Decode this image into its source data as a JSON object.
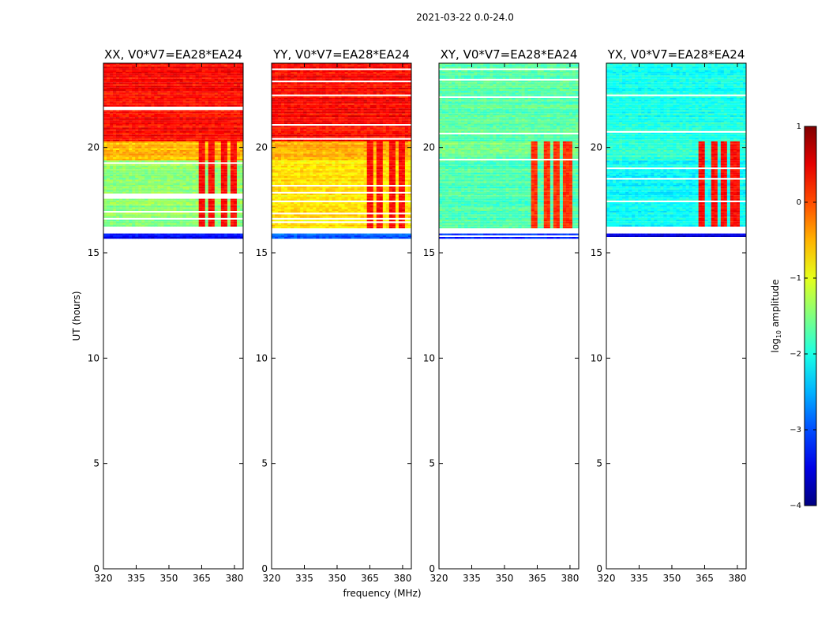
{
  "chart_data": {
    "type": "heatmap",
    "suptitle": "2021-03-22 0.0-24.0",
    "xlabel": "frequency (MHz)",
    "ylabel": "UT (hours)",
    "xlim": [
      320,
      384
    ],
    "ylim": [
      0,
      24
    ],
    "xticks": [
      320,
      335,
      350,
      365,
      380
    ],
    "yticks": [
      0,
      5,
      10,
      15,
      20
    ],
    "data_time_range_hours": [
      15.7,
      24.0
    ],
    "colorbar": {
      "label": "log10 amplitude",
      "range": [
        -4,
        1
      ],
      "ticks": [
        1,
        0,
        -1,
        -2,
        -3,
        -4
      ],
      "tick_labels": [
        "1",
        "0",
        "−1",
        "−2",
        "−3",
        "−4"
      ],
      "colormap": "jet"
    },
    "panels": [
      {
        "title": "XX, V0*V7=EA28*EA24",
        "bands": [
          {
            "t0": 20.3,
            "t1": 24.0,
            "level": 0.35
          },
          {
            "t0": 19.4,
            "t1": 20.3,
            "level": -0.55
          },
          {
            "t0": 16.2,
            "t1": 19.4,
            "level": -1.45
          },
          {
            "t0": 15.7,
            "t1": 15.9,
            "level": -3.4
          }
        ],
        "bright_channels_mhz": [
          365,
          370,
          375,
          380
        ],
        "bright_channel_level": 0.5
      },
      {
        "title": "YY, V0*V7=EA28*EA24",
        "bands": [
          {
            "t0": 20.3,
            "t1": 24.0,
            "level": 0.35
          },
          {
            "t0": 19.4,
            "t1": 20.3,
            "level": -0.45
          },
          {
            "t0": 16.2,
            "t1": 19.4,
            "level": -0.75
          },
          {
            "t0": 15.7,
            "t1": 15.9,
            "level": -2.9
          }
        ],
        "bright_channels_mhz": [
          365,
          370,
          375,
          380
        ],
        "bright_channel_level": 0.5
      },
      {
        "title": "XY, V0*V7=EA28*EA24",
        "bands": [
          {
            "t0": 20.3,
            "t1": 24.0,
            "level": -1.7
          },
          {
            "t0": 19.4,
            "t1": 20.3,
            "level": -1.6
          },
          {
            "t0": 16.2,
            "t1": 19.4,
            "level": -1.75
          },
          {
            "t0": 15.7,
            "t1": 15.9,
            "level": -3.2
          }
        ],
        "bright_channels_mhz": [
          364,
          369,
          374,
          379
        ],
        "bright_channel_level": 0.3
      },
      {
        "title": "YX, V0*V7=EA28*EA24",
        "bands": [
          {
            "t0": 20.3,
            "t1": 24.0,
            "level": -2.0
          },
          {
            "t0": 19.4,
            "t1": 20.3,
            "level": -1.9
          },
          {
            "t0": 16.2,
            "t1": 19.4,
            "level": -2.1
          },
          {
            "t0": 15.7,
            "t1": 15.9,
            "level": -3.6
          }
        ],
        "bright_channels_mhz": [
          364,
          369,
          374,
          379
        ],
        "bright_channel_level": 0.5
      }
    ]
  }
}
